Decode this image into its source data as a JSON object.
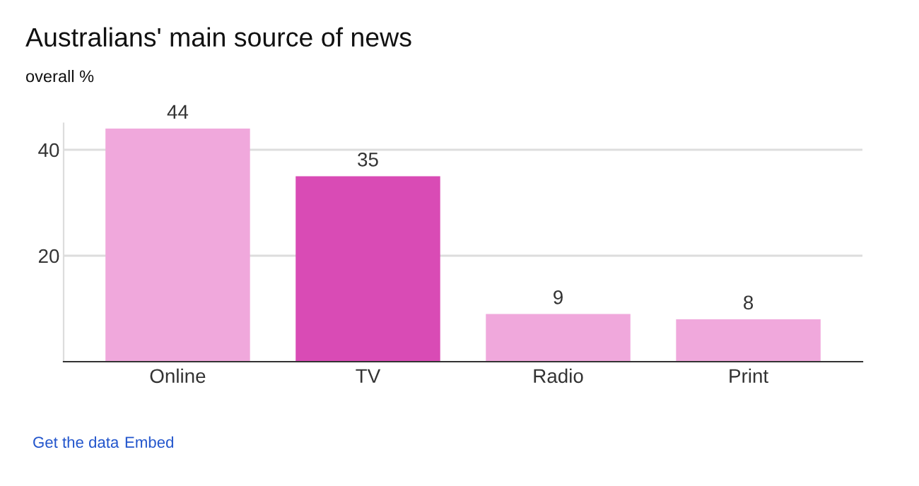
{
  "chart_data": {
    "type": "bar",
    "title": "Australians' main source of news",
    "subtitle": "overall %",
    "categories": [
      "Online",
      "TV",
      "Radio",
      "Print"
    ],
    "values": [
      44,
      35,
      9,
      8
    ],
    "colors": [
      "#f0a8dc",
      "#d94bb5",
      "#f0a8dc",
      "#f0a8dc"
    ],
    "ylim": [
      0,
      45
    ],
    "yticks": [
      20,
      40
    ],
    "grid": "y",
    "data_labels": true,
    "annotations": [
      "Get the data",
      "Embed"
    ]
  }
}
